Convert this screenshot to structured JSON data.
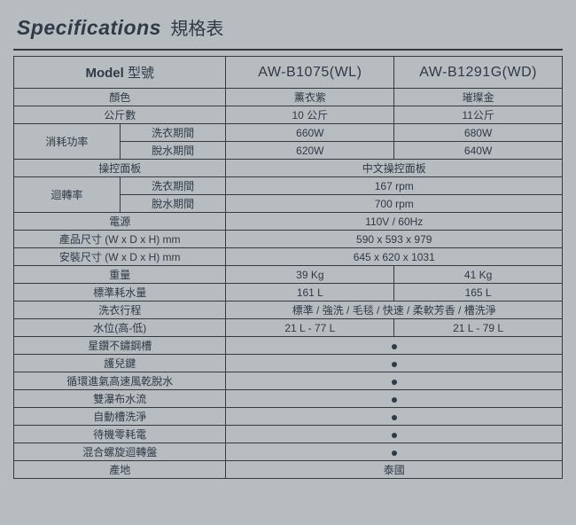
{
  "title": {
    "en": "Specifications",
    "zh": "規格表"
  },
  "header": {
    "model_en": "Model",
    "model_zh": "型號",
    "col1": "AW-B1075(WL)",
    "col2": "AW-B1291G(WD)"
  },
  "rows": {
    "color": {
      "label": "顏色",
      "v1": "薰衣紫",
      "v2": "璀璨金"
    },
    "capacity": {
      "label": "公斤數",
      "v1": "10 公斤",
      "v2": "11公斤"
    },
    "power": {
      "label": "消耗功率",
      "wash_label": "洗衣期間",
      "wash_v1": "660W",
      "wash_v2": "680W",
      "spin_label": "脫水期間",
      "spin_v1": "620W",
      "spin_v2": "640W"
    },
    "panel": {
      "label": "操控面板",
      "value": "中文操控面板"
    },
    "rpm": {
      "label": "迴轉率",
      "wash_label": "洗衣期間",
      "wash_value": "167 rpm",
      "spin_label": "脫水期間",
      "spin_value": "700 rpm"
    },
    "power_src": {
      "label": "電源",
      "value": "110V / 60Hz"
    },
    "dim_prod": {
      "label": "產品尺寸 (W x D x H) mm",
      "value": "590 x 593 x 979"
    },
    "dim_install": {
      "label": "安裝尺寸 (W x D x H) mm",
      "value": "645 x 620 x 1031"
    },
    "weight": {
      "label": "重量",
      "v1": "39 Kg",
      "v2": "41 Kg"
    },
    "water": {
      "label": "標準耗水量",
      "v1": "161 L",
      "v2": "165 L"
    },
    "programs": {
      "label": "洗衣行程",
      "value": "標準 / 強洗 / 毛毯 / 快速 / 柔軟芳香 / 槽洗淨"
    },
    "level": {
      "label": "水位(高-低)",
      "v1": "21 L - 77 L",
      "v2": "21 L - 79 L"
    },
    "f1": {
      "label": "星鑽不鏽鋼槽"
    },
    "f2": {
      "label": "護兒鍵"
    },
    "f3": {
      "label": "循環進氣高速風乾脫水"
    },
    "f4": {
      "label": "雙瀑布水流"
    },
    "f5": {
      "label": "自動槽洗淨"
    },
    "f6": {
      "label": "待機零耗電"
    },
    "f7": {
      "label": "混合螺旋迴轉盤"
    },
    "origin": {
      "label": "產地",
      "value": "泰國"
    }
  },
  "style": {
    "background": "#b7bcc0",
    "border_color": "#323b42",
    "text_color": "#2e3a45"
  }
}
